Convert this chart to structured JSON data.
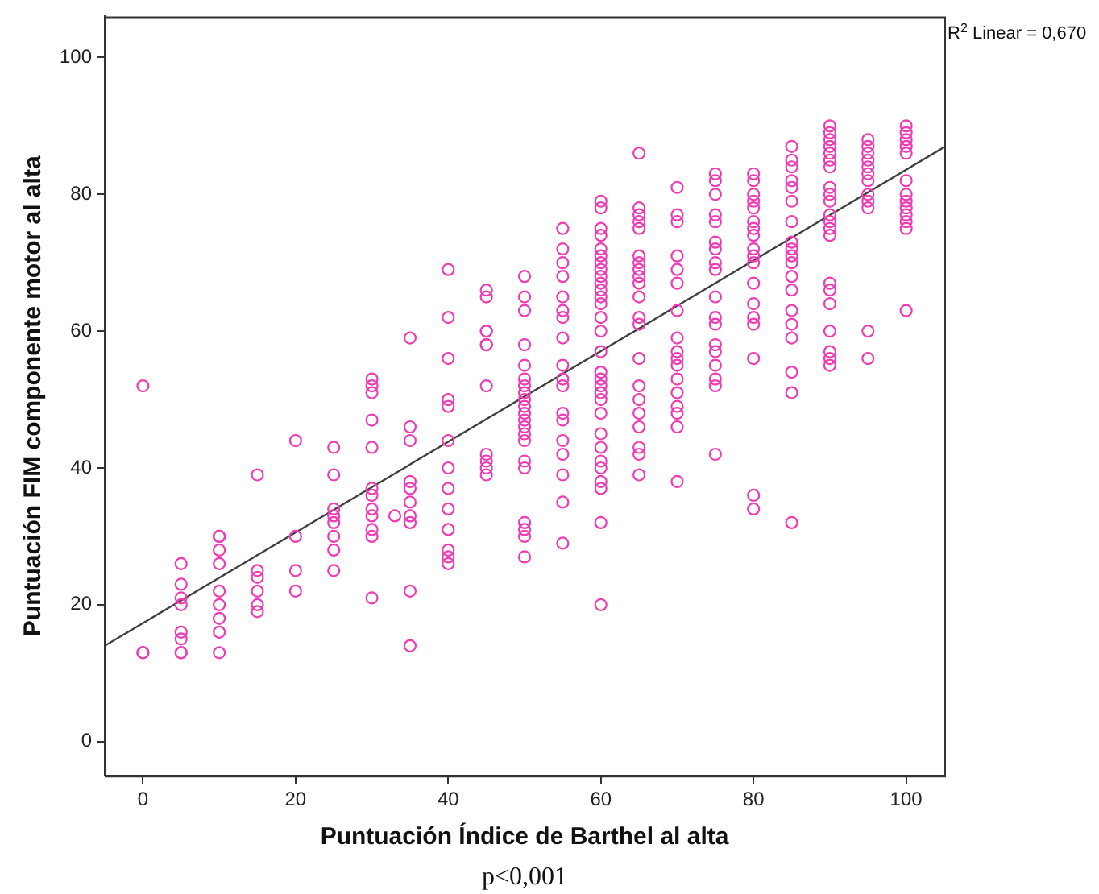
{
  "chart_data": {
    "type": "scatter",
    "xlabel": "Puntuación Índice de Barthel al alta",
    "ylabel": "Puntuación FIM componente motor al alta",
    "annotations": [
      "R$^{2}$ Linear = 0,670",
      "p<0,001"
    ],
    "xlim": [
      -5,
      105
    ],
    "ylim": [
      -5,
      106
    ],
    "xticks": [
      0,
      20,
      40,
      60,
      80,
      100
    ],
    "yticks": [
      0,
      20,
      40,
      60,
      80,
      100
    ],
    "grid": false,
    "legend": false,
    "series": [
      {
        "marker": "circle",
        "color": "#f03cb4",
        "x": [
          0,
          0,
          0,
          5,
          5,
          5,
          5,
          5,
          5,
          5,
          5,
          10,
          10,
          10,
          10,
          10,
          10,
          10,
          10,
          10,
          15,
          15,
          15,
          15,
          15,
          15,
          20,
          20,
          20,
          20,
          25,
          25,
          25,
          25,
          25,
          25,
          25,
          25,
          30,
          30,
          30,
          30,
          30,
          30,
          30,
          30,
          30,
          30,
          30,
          30,
          33,
          35,
          35,
          35,
          35,
          35,
          35,
          35,
          35,
          35,
          35,
          40,
          40,
          40,
          40,
          40,
          40,
          40,
          40,
          40,
          40,
          40,
          40,
          40,
          45,
          45,
          45,
          45,
          45,
          45,
          45,
          45,
          45,
          45,
          45,
          50,
          50,
          50,
          50,
          50,
          50,
          50,
          50,
          50,
          50,
          50,
          50,
          50,
          50,
          50,
          50,
          50,
          50,
          50,
          50,
          50,
          55,
          55,
          55,
          55,
          55,
          55,
          55,
          55,
          55,
          55,
          55,
          55,
          55,
          55,
          55,
          55,
          55,
          55,
          60,
          60,
          60,
          60,
          60,
          60,
          60,
          60,
          60,
          60,
          60,
          60,
          60,
          60,
          60,
          60,
          60,
          60,
          60,
          60,
          60,
          60,
          60,
          60,
          60,
          60,
          60,
          60,
          60,
          60,
          65,
          65,
          65,
          65,
          65,
          65,
          65,
          65,
          65,
          65,
          65,
          65,
          65,
          65,
          65,
          65,
          65,
          65,
          65,
          65,
          65,
          70,
          70,
          70,
          70,
          70,
          70,
          70,
          70,
          70,
          70,
          70,
          70,
          70,
          70,
          70,
          70,
          70,
          75,
          75,
          75,
          75,
          75,
          75,
          75,
          75,
          75,
          75,
          75,
          75,
          75,
          75,
          75,
          75,
          75,
          75,
          80,
          80,
          80,
          80,
          80,
          80,
          80,
          80,
          80,
          80,
          80,
          80,
          80,
          80,
          80,
          80,
          80,
          80,
          85,
          85,
          85,
          85,
          85,
          85,
          85,
          85,
          85,
          85,
          85,
          85,
          85,
          85,
          85,
          85,
          85,
          85,
          85,
          90,
          90,
          90,
          90,
          90,
          90,
          90,
          90,
          90,
          90,
          90,
          90,
          90,
          90,
          90,
          90,
          90,
          90,
          90,
          90,
          90,
          95,
          95,
          95,
          95,
          95,
          95,
          95,
          95,
          95,
          95,
          95,
          95,
          100,
          100,
          100,
          100,
          100,
          100,
          100,
          100,
          100,
          100,
          100,
          100,
          100
        ],
        "values": [
          52,
          13,
          13,
          26,
          23,
          21,
          20,
          16,
          15,
          13,
          13,
          30,
          30,
          28,
          26,
          22,
          20,
          18,
          16,
          13,
          39,
          25,
          24,
          22,
          20,
          19,
          44,
          30,
          25,
          22,
          43,
          39,
          34,
          33,
          32,
          30,
          28,
          25,
          53,
          52,
          51,
          47,
          43,
          37,
          36,
          34,
          33,
          31,
          30,
          21,
          33,
          59,
          46,
          44,
          38,
          37,
          35,
          33,
          32,
          22,
          14,
          69,
          62,
          56,
          50,
          49,
          44,
          40,
          37,
          34,
          31,
          28,
          27,
          26,
          66,
          65,
          60,
          60,
          58,
          58,
          52,
          42,
          41,
          40,
          39,
          68,
          65,
          63,
          58,
          55,
          53,
          52,
          51,
          50,
          49,
          48,
          47,
          46,
          45,
          44,
          41,
          40,
          32,
          31,
          30,
          27,
          75,
          72,
          70,
          68,
          65,
          63,
          62,
          59,
          55,
          53,
          52,
          48,
          47,
          44,
          42,
          39,
          35,
          29,
          79,
          78,
          75,
          74,
          72,
          71,
          70,
          69,
          68,
          67,
          66,
          65,
          64,
          62,
          60,
          57,
          54,
          53,
          52,
          51,
          50,
          48,
          45,
          43,
          41,
          40,
          38,
          37,
          32,
          20,
          86,
          78,
          77,
          76,
          75,
          71,
          70,
          69,
          68,
          67,
          65,
          62,
          61,
          56,
          52,
          50,
          48,
          46,
          43,
          42,
          39,
          81,
          77,
          76,
          71,
          69,
          67,
          63,
          59,
          57,
          56,
          55,
          53,
          51,
          49,
          48,
          46,
          38,
          83,
          82,
          80,
          77,
          76,
          73,
          72,
          70,
          69,
          65,
          62,
          61,
          58,
          57,
          55,
          53,
          52,
          42,
          83,
          82,
          80,
          79,
          78,
          76,
          75,
          74,
          72,
          71,
          70,
          67,
          64,
          62,
          61,
          56,
          36,
          34,
          87,
          85,
          84,
          82,
          81,
          79,
          76,
          73,
          72,
          71,
          70,
          68,
          66,
          63,
          61,
          59,
          54,
          51,
          32,
          90,
          89,
          88,
          87,
          86,
          85,
          84,
          81,
          80,
          79,
          77,
          76,
          75,
          74,
          67,
          66,
          64,
          60,
          57,
          56,
          55,
          88,
          87,
          86,
          85,
          84,
          83,
          82,
          80,
          79,
          78,
          60,
          56,
          90,
          89,
          88,
          87,
          86,
          82,
          80,
          79,
          78,
          77,
          76,
          75,
          63
        ]
      },
      {
        "type": "line",
        "marker": "none",
        "line_style": "solid",
        "color": "#404040",
        "x": [
          -5,
          105
        ],
        "values": [
          14,
          86.9
        ]
      }
    ]
  }
}
